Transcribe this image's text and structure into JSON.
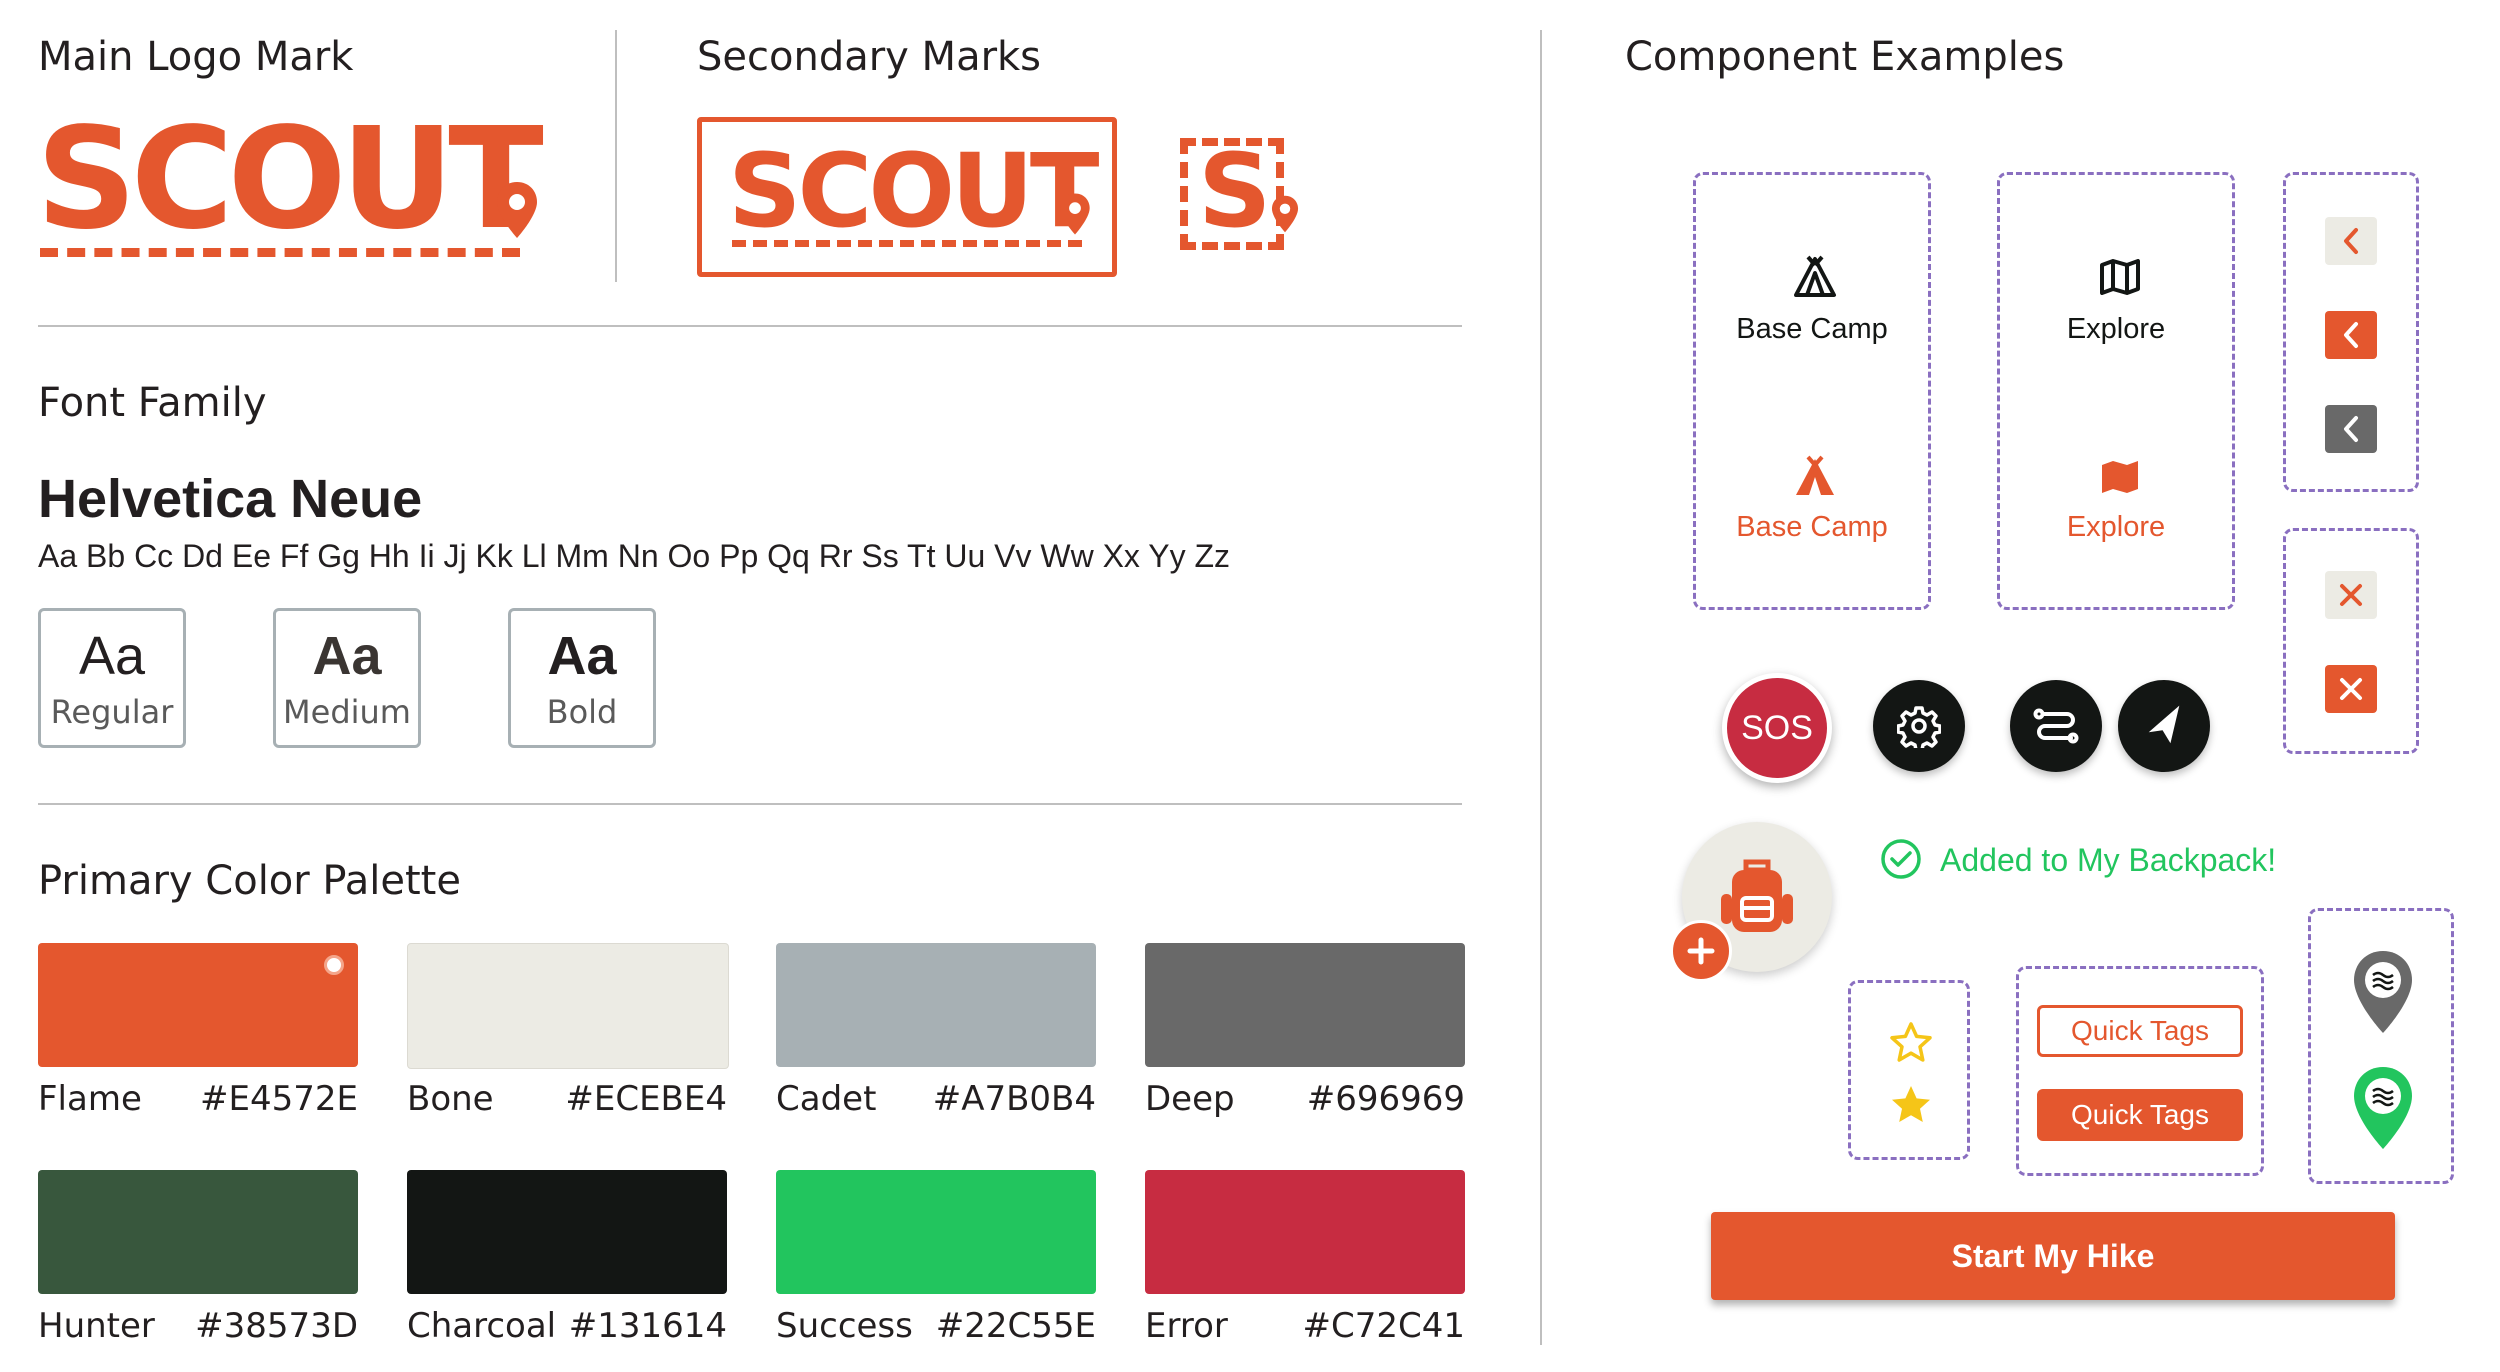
{
  "sections": {
    "main_logo": "Main Logo Mark",
    "secondary": "Secondary Marks",
    "components": "Component Examples",
    "font_family": "Font Family",
    "palette": "Primary Color Palette"
  },
  "logo": {
    "word": "SCOUT",
    "mono": "S"
  },
  "font": {
    "name": "Helvetica Neue",
    "alphabet": "Aa Bb Cc Dd Ee Ff Gg Hh Ii Jj Kk Ll Mm Nn Oo Pp Qq Rr Ss Tt Uu Vv Ww Xx Yy Zz",
    "sample": "Aa",
    "weights": [
      "Regular",
      "Medium",
      "Bold"
    ]
  },
  "palette": [
    {
      "name": "Flame",
      "hex": "#E4572E"
    },
    {
      "name": "Bone",
      "hex": "#ECEBE4"
    },
    {
      "name": "Cadet",
      "hex": "#A7B0B4"
    },
    {
      "name": "Deep",
      "hex": "#696969"
    },
    {
      "name": "Hunter",
      "hex": "#38573D"
    },
    {
      "name": "Charcoal",
      "hex": "#131614"
    },
    {
      "name": "Success",
      "hex": "#22C55E"
    },
    {
      "name": "Error",
      "hex": "#C72C41"
    }
  ],
  "components": {
    "base_camp": "Base Camp",
    "explore": "Explore",
    "sos": "SOS",
    "added_message": "Added to My Backpack!",
    "quick_tags": "Quick Tags",
    "start_button": "Start My Hike"
  },
  "icons": {
    "tent": "tent-icon",
    "map": "map-icon",
    "back": "chevron-left-icon",
    "close": "close-icon",
    "settings": "gear-icon",
    "route": "route-icon",
    "navigate": "navigation-arrow-icon",
    "backpack": "backpack-icon",
    "add": "plus-icon",
    "check": "check-circle-icon",
    "star": "star-icon",
    "pin": "map-pin-icon"
  }
}
